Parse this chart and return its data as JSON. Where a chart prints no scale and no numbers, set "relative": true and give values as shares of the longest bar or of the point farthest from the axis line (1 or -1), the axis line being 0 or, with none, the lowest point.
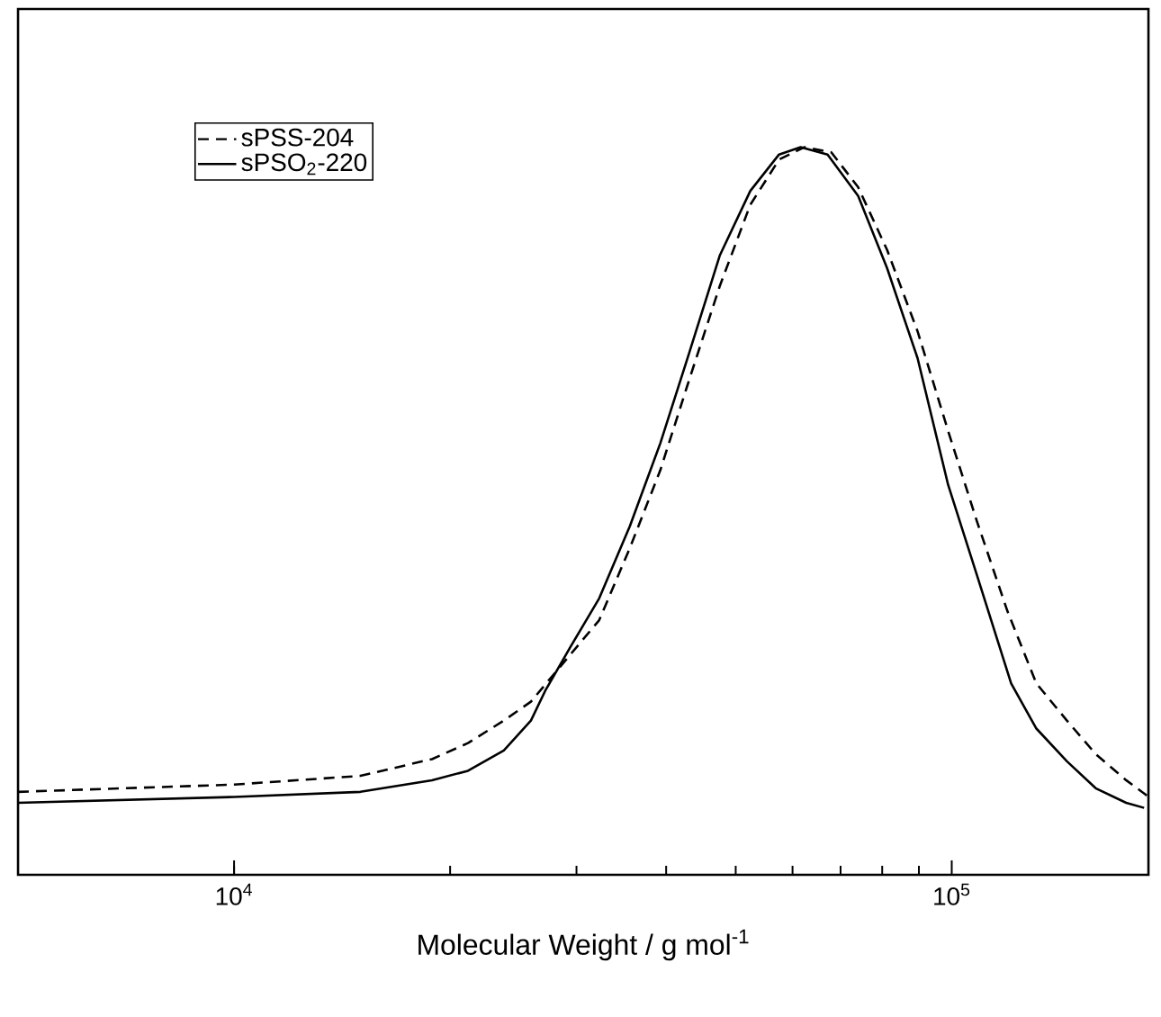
{
  "chart_data": {
    "type": "line",
    "xlabel": "Molecular Weight /  g mol$^{-1}$",
    "log": "x",
    "relative": true,
    "legend": "top left",
    "xlim": [
      5000,
      188000
    ],
    "xticks": [
      {
        "value": 10000,
        "label": "10$^{4}$"
      },
      {
        "value": 100000,
        "label": "10$^{5}$"
      }
    ],
    "series": [
      {
        "name": "sPSS-204",
        "color": "#000000",
        "line_style": "dashed",
        "x": [
          5000,
          10000,
          15000,
          18870,
          21180,
          23760,
          25920,
          32270,
          35600,
          39260,
          43060,
          47500,
          52400,
          57460,
          62300,
          67950,
          74070,
          81250,
          89620,
          98850,
          108400,
          119600,
          131200,
          144700,
          158700,
          175000,
          187000
        ],
        "values": [
          0.114,
          0.124,
          0.136,
          0.159,
          0.181,
          0.212,
          0.238,
          0.35,
          0.449,
          0.556,
          0.68,
          0.809,
          0.921,
          0.983,
          1,
          0.993,
          0.945,
          0.859,
          0.747,
          0.61,
          0.486,
          0.362,
          0.263,
          0.212,
          0.166,
          0.13,
          0.109
        ]
      },
      {
        "name": "sPSO$_{2}$-220",
        "color": "#000000",
        "line_style": "solid",
        "x": [
          5000,
          10000,
          15000,
          18870,
          21180,
          23760,
          25920,
          27140,
          29420,
          32270,
          35600,
          39260,
          43060,
          47500,
          52400,
          57460,
          61580,
          67150,
          74070,
          81250,
          89620,
          98850,
          108400,
          121000,
          131200,
          144700,
          158700,
          175000,
          185400
        ],
        "values": [
          0.099,
          0.107,
          0.114,
          0.13,
          0.143,
          0.171,
          0.212,
          0.253,
          0.313,
          0.38,
          0.479,
          0.593,
          0.717,
          0.851,
          0.94,
          0.99,
          1,
          0.99,
          0.933,
          0.834,
          0.71,
          0.536,
          0.412,
          0.263,
          0.201,
          0.156,
          0.119,
          0.099,
          0.092
        ]
      }
    ]
  }
}
